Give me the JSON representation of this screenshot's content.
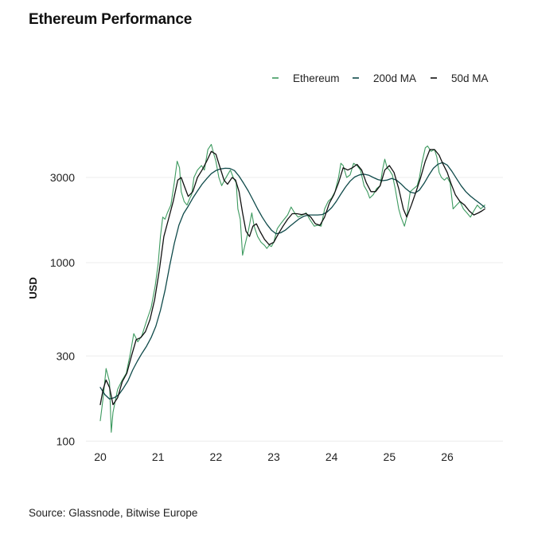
{
  "chart_data": {
    "type": "line",
    "title": "Ethereum Performance",
    "ylabel": "USD",
    "xlabel": "",
    "y_scale": "log",
    "ylim": [
      100,
      5000
    ],
    "y_ticks": [
      100,
      300,
      1000,
      3000
    ],
    "y_tick_labels": [
      "100",
      "300",
      "1000",
      "3000"
    ],
    "x_ticks": [
      2020,
      2021,
      2022,
      2023,
      2024,
      2025,
      2026
    ],
    "x_tick_labels": [
      "20",
      "21",
      "22",
      "23",
      "24",
      "25",
      "26"
    ],
    "xlim": [
      2020,
      2026.75
    ],
    "grid": "horizontal",
    "legend_position": "top-right",
    "series": [
      {
        "name": "Ethereum",
        "color": "#3d9a5f",
        "points": [
          [
            2020.0,
            130
          ],
          [
            2020.05,
            175
          ],
          [
            2020.1,
            255
          ],
          [
            2020.16,
            215
          ],
          [
            2020.19,
            112
          ],
          [
            2020.22,
            145
          ],
          [
            2020.3,
            195
          ],
          [
            2020.38,
            220
          ],
          [
            2020.45,
            240
          ],
          [
            2020.52,
            310
          ],
          [
            2020.58,
            400
          ],
          [
            2020.65,
            360
          ],
          [
            2020.72,
            390
          ],
          [
            2020.8,
            470
          ],
          [
            2020.88,
            560
          ],
          [
            2020.95,
            740
          ],
          [
            2021.0,
            980
          ],
          [
            2021.04,
            1400
          ],
          [
            2021.08,
            1800
          ],
          [
            2021.12,
            1750
          ],
          [
            2021.16,
            1900
          ],
          [
            2021.22,
            2100
          ],
          [
            2021.28,
            2800
          ],
          [
            2021.33,
            3700
          ],
          [
            2021.37,
            3400
          ],
          [
            2021.4,
            2500
          ],
          [
            2021.45,
            2200
          ],
          [
            2021.5,
            2100
          ],
          [
            2021.55,
            2300
          ],
          [
            2021.58,
            2400
          ],
          [
            2021.62,
            3000
          ],
          [
            2021.68,
            3300
          ],
          [
            2021.75,
            3500
          ],
          [
            2021.8,
            3300
          ],
          [
            2021.86,
            4300
          ],
          [
            2021.92,
            4600
          ],
          [
            2021.96,
            4100
          ],
          [
            2022.0,
            3700
          ],
          [
            2022.05,
            3000
          ],
          [
            2022.1,
            2700
          ],
          [
            2022.15,
            2900
          ],
          [
            2022.2,
            3100
          ],
          [
            2022.25,
            3300
          ],
          [
            2022.3,
            3000
          ],
          [
            2022.35,
            2800
          ],
          [
            2022.38,
            2000
          ],
          [
            2022.42,
            1750
          ],
          [
            2022.46,
            1100
          ],
          [
            2022.5,
            1250
          ],
          [
            2022.56,
            1500
          ],
          [
            2022.62,
            1900
          ],
          [
            2022.66,
            1600
          ],
          [
            2022.72,
            1400
          ],
          [
            2022.78,
            1300
          ],
          [
            2022.84,
            1250
          ],
          [
            2022.88,
            1200
          ],
          [
            2022.92,
            1250
          ],
          [
            2022.96,
            1230
          ],
          [
            2023.0,
            1300
          ],
          [
            2023.06,
            1550
          ],
          [
            2023.12,
            1650
          ],
          [
            2023.18,
            1750
          ],
          [
            2023.24,
            1850
          ],
          [
            2023.3,
            2050
          ],
          [
            2023.36,
            1900
          ],
          [
            2023.42,
            1800
          ],
          [
            2023.5,
            1850
          ],
          [
            2023.56,
            1900
          ],
          [
            2023.62,
            1750
          ],
          [
            2023.7,
            1600
          ],
          [
            2023.76,
            1620
          ],
          [
            2023.82,
            1600
          ],
          [
            2023.88,
            2000
          ],
          [
            2023.94,
            2200
          ],
          [
            2024.0,
            2300
          ],
          [
            2024.06,
            2500
          ],
          [
            2024.12,
            3000
          ],
          [
            2024.16,
            3600
          ],
          [
            2024.2,
            3500
          ],
          [
            2024.26,
            3000
          ],
          [
            2024.32,
            3100
          ],
          [
            2024.38,
            3600
          ],
          [
            2024.44,
            3500
          ],
          [
            2024.5,
            3300
          ],
          [
            2024.56,
            2700
          ],
          [
            2024.62,
            2500
          ],
          [
            2024.66,
            2300
          ],
          [
            2024.72,
            2400
          ],
          [
            2024.78,
            2600
          ],
          [
            2024.84,
            2700
          ],
          [
            2024.88,
            3300
          ],
          [
            2024.92,
            3800
          ],
          [
            2024.96,
            3400
          ],
          [
            2025.0,
            3300
          ],
          [
            2025.05,
            3100
          ],
          [
            2025.1,
            2600
          ],
          [
            2025.16,
            2000
          ],
          [
            2025.2,
            1800
          ],
          [
            2025.26,
            1600
          ],
          [
            2025.3,
            1800
          ],
          [
            2025.36,
            2500
          ],
          [
            2025.42,
            2600
          ],
          [
            2025.48,
            2700
          ],
          [
            2025.52,
            3000
          ],
          [
            2025.56,
            3600
          ],
          [
            2025.62,
            4400
          ],
          [
            2025.66,
            4500
          ],
          [
            2025.72,
            4200
          ],
          [
            2025.78,
            4300
          ],
          [
            2025.82,
            3900
          ],
          [
            2025.86,
            3200
          ],
          [
            2025.9,
            3000
          ],
          [
            2025.95,
            2900
          ],
          [
            2026.0,
            3000
          ],
          [
            2026.05,
            2800
          ],
          [
            2026.1,
            2000
          ],
          [
            2026.16,
            2100
          ],
          [
            2026.22,
            2200
          ],
          [
            2026.28,
            2000
          ],
          [
            2026.34,
            1900
          ],
          [
            2026.4,
            1800
          ],
          [
            2026.46,
            1950
          ],
          [
            2026.52,
            2100
          ],
          [
            2026.58,
            2000
          ],
          [
            2026.65,
            2100
          ]
        ]
      },
      {
        "name": "200d MA",
        "color": "#0f4a4a",
        "points": [
          [
            2020.0,
            200
          ],
          [
            2020.08,
            182
          ],
          [
            2020.16,
            172
          ],
          [
            2020.24,
            175
          ],
          [
            2020.32,
            182
          ],
          [
            2020.4,
            198
          ],
          [
            2020.48,
            218
          ],
          [
            2020.56,
            250
          ],
          [
            2020.64,
            280
          ],
          [
            2020.72,
            310
          ],
          [
            2020.8,
            340
          ],
          [
            2020.88,
            380
          ],
          [
            2020.96,
            440
          ],
          [
            2021.04,
            540
          ],
          [
            2021.12,
            700
          ],
          [
            2021.2,
            960
          ],
          [
            2021.28,
            1280
          ],
          [
            2021.36,
            1620
          ],
          [
            2021.44,
            1880
          ],
          [
            2021.52,
            2070
          ],
          [
            2021.6,
            2300
          ],
          [
            2021.68,
            2520
          ],
          [
            2021.76,
            2750
          ],
          [
            2021.84,
            2950
          ],
          [
            2021.92,
            3150
          ],
          [
            2022.0,
            3280
          ],
          [
            2022.08,
            3350
          ],
          [
            2022.16,
            3380
          ],
          [
            2022.24,
            3370
          ],
          [
            2022.32,
            3280
          ],
          [
            2022.4,
            3050
          ],
          [
            2022.48,
            2780
          ],
          [
            2022.56,
            2520
          ],
          [
            2022.64,
            2250
          ],
          [
            2022.72,
            2000
          ],
          [
            2022.8,
            1800
          ],
          [
            2022.88,
            1640
          ],
          [
            2022.96,
            1520
          ],
          [
            2023.04,
            1450
          ],
          [
            2023.12,
            1470
          ],
          [
            2023.2,
            1520
          ],
          [
            2023.28,
            1600
          ],
          [
            2023.36,
            1680
          ],
          [
            2023.44,
            1760
          ],
          [
            2023.52,
            1820
          ],
          [
            2023.6,
            1850
          ],
          [
            2023.68,
            1850
          ],
          [
            2023.76,
            1850
          ],
          [
            2023.84,
            1860
          ],
          [
            2023.92,
            1920
          ],
          [
            2024.0,
            2030
          ],
          [
            2024.08,
            2200
          ],
          [
            2024.16,
            2420
          ],
          [
            2024.24,
            2650
          ],
          [
            2024.32,
            2860
          ],
          [
            2024.4,
            3020
          ],
          [
            2024.48,
            3100
          ],
          [
            2024.56,
            3130
          ],
          [
            2024.64,
            3090
          ],
          [
            2024.72,
            3000
          ],
          [
            2024.8,
            2920
          ],
          [
            2024.88,
            2880
          ],
          [
            2024.96,
            2900
          ],
          [
            2025.04,
            2960
          ],
          [
            2025.12,
            2900
          ],
          [
            2025.2,
            2760
          ],
          [
            2025.28,
            2600
          ],
          [
            2025.36,
            2480
          ],
          [
            2025.44,
            2450
          ],
          [
            2025.52,
            2550
          ],
          [
            2025.6,
            2780
          ],
          [
            2025.68,
            3080
          ],
          [
            2025.76,
            3380
          ],
          [
            2025.84,
            3560
          ],
          [
            2025.92,
            3640
          ],
          [
            2026.0,
            3520
          ],
          [
            2026.08,
            3250
          ],
          [
            2026.16,
            2960
          ],
          [
            2026.24,
            2700
          ],
          [
            2026.32,
            2500
          ],
          [
            2026.4,
            2360
          ],
          [
            2026.48,
            2250
          ],
          [
            2026.56,
            2150
          ],
          [
            2026.65,
            2040
          ]
        ]
      },
      {
        "name": "50d MA",
        "color": "#111111",
        "points": [
          [
            2020.0,
            160
          ],
          [
            2020.05,
            195
          ],
          [
            2020.1,
            220
          ],
          [
            2020.16,
            200
          ],
          [
            2020.22,
            160
          ],
          [
            2020.3,
            175
          ],
          [
            2020.38,
            215
          ],
          [
            2020.46,
            240
          ],
          [
            2020.54,
            300
          ],
          [
            2020.62,
            370
          ],
          [
            2020.7,
            380
          ],
          [
            2020.78,
            410
          ],
          [
            2020.86,
            480
          ],
          [
            2020.94,
            620
          ],
          [
            2021.02,
            900
          ],
          [
            2021.1,
            1400
          ],
          [
            2021.18,
            1750
          ],
          [
            2021.26,
            2200
          ],
          [
            2021.34,
            2900
          ],
          [
            2021.4,
            3000
          ],
          [
            2021.46,
            2650
          ],
          [
            2021.52,
            2350
          ],
          [
            2021.6,
            2500
          ],
          [
            2021.68,
            3000
          ],
          [
            2021.76,
            3300
          ],
          [
            2021.84,
            3700
          ],
          [
            2021.92,
            4200
          ],
          [
            2022.0,
            4050
          ],
          [
            2022.06,
            3500
          ],
          [
            2022.14,
            2900
          ],
          [
            2022.2,
            2750
          ],
          [
            2022.28,
            3000
          ],
          [
            2022.34,
            2900
          ],
          [
            2022.4,
            2500
          ],
          [
            2022.46,
            1900
          ],
          [
            2022.52,
            1500
          ],
          [
            2022.58,
            1400
          ],
          [
            2022.64,
            1600
          ],
          [
            2022.7,
            1650
          ],
          [
            2022.76,
            1500
          ],
          [
            2022.84,
            1350
          ],
          [
            2022.92,
            1260
          ],
          [
            2023.0,
            1300
          ],
          [
            2023.08,
            1450
          ],
          [
            2023.16,
            1600
          ],
          [
            2023.24,
            1750
          ],
          [
            2023.32,
            1880
          ],
          [
            2023.4,
            1880
          ],
          [
            2023.48,
            1860
          ],
          [
            2023.56,
            1880
          ],
          [
            2023.64,
            1800
          ],
          [
            2023.72,
            1650
          ],
          [
            2023.8,
            1620
          ],
          [
            2023.88,
            1800
          ],
          [
            2023.96,
            2150
          ],
          [
            2024.04,
            2400
          ],
          [
            2024.12,
            2800
          ],
          [
            2024.2,
            3400
          ],
          [
            2024.28,
            3300
          ],
          [
            2024.36,
            3400
          ],
          [
            2024.44,
            3550
          ],
          [
            2024.52,
            3300
          ],
          [
            2024.6,
            2800
          ],
          [
            2024.68,
            2500
          ],
          [
            2024.76,
            2500
          ],
          [
            2024.84,
            2700
          ],
          [
            2024.92,
            3300
          ],
          [
            2025.0,
            3500
          ],
          [
            2025.08,
            3200
          ],
          [
            2025.16,
            2600
          ],
          [
            2025.24,
            2000
          ],
          [
            2025.3,
            1800
          ],
          [
            2025.38,
            2100
          ],
          [
            2025.46,
            2500
          ],
          [
            2025.54,
            3000
          ],
          [
            2025.62,
            3700
          ],
          [
            2025.7,
            4300
          ],
          [
            2025.78,
            4300
          ],
          [
            2025.86,
            4000
          ],
          [
            2025.92,
            3600
          ],
          [
            2026.0,
            3200
          ],
          [
            2026.06,
            2800
          ],
          [
            2026.14,
            2400
          ],
          [
            2026.22,
            2200
          ],
          [
            2026.3,
            2100
          ],
          [
            2026.38,
            1950
          ],
          [
            2026.46,
            1850
          ],
          [
            2026.54,
            1900
          ],
          [
            2026.6,
            1950
          ],
          [
            2026.65,
            2000
          ]
        ]
      }
    ]
  },
  "footer": {
    "source": "Source: Glassnode, Bitwise Europe"
  }
}
